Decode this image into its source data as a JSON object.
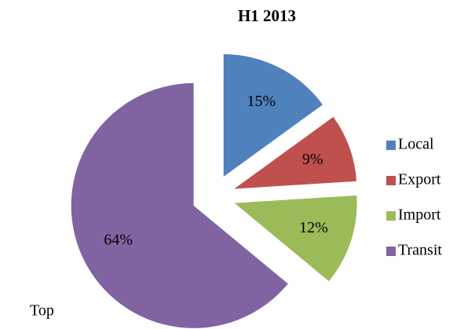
{
  "chart_data": {
    "type": "pie",
    "title": "H1 2013",
    "categories": [
      "Local",
      "Export",
      "Import",
      "Transit"
    ],
    "values": [
      15,
      9,
      12,
      64
    ],
    "value_labels": [
      "15%",
      "9%",
      "12%",
      "64%"
    ],
    "colors": [
      "#4f81bd",
      "#c0504d",
      "#9bbb59",
      "#8064a2"
    ],
    "legend": "right",
    "annotation": "Top"
  }
}
